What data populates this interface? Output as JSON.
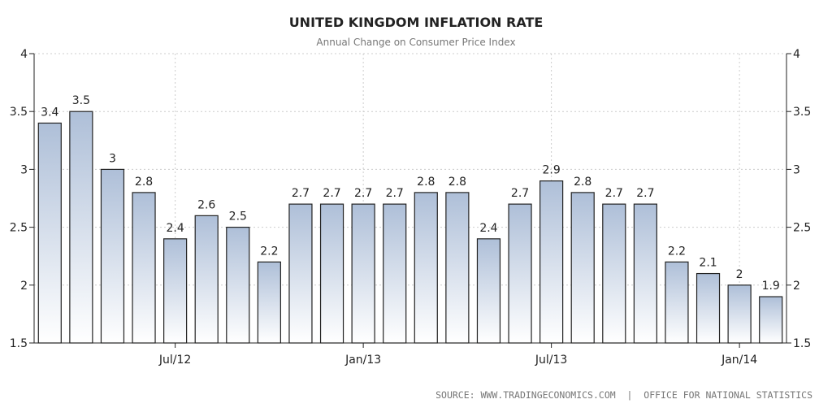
{
  "chart_data": {
    "type": "bar",
    "title": "UNITED KINGDOM INFLATION RATE",
    "subtitle": "Annual Change on Consumer Price Index",
    "values": [
      3.4,
      3.5,
      3,
      2.8,
      2.4,
      2.6,
      2.5,
      2.2,
      2.7,
      2.7,
      2.7,
      2.7,
      2.8,
      2.8,
      2.4,
      2.7,
      2.9,
      2.8,
      2.7,
      2.7,
      2.2,
      2.1,
      2,
      1.9
    ],
    "value_labels": [
      "3.4",
      "3.5",
      "3",
      "2.8",
      "2.4",
      "2.6",
      "2.5",
      "2.2",
      "2.7",
      "2.7",
      "2.7",
      "2.7",
      "2.8",
      "2.8",
      "2.4",
      "2.7",
      "2.9",
      "2.8",
      "2.7",
      "2.7",
      "2.2",
      "2.1",
      "2",
      "1.9"
    ],
    "x_ticks": [
      {
        "label": "Jul/12",
        "index": 4.5
      },
      {
        "label": "Jan/13",
        "index": 10.5
      },
      {
        "label": "Jul/13",
        "index": 16.5
      },
      {
        "label": "Jan/14",
        "index": 22.5
      }
    ],
    "y_ticks": [
      "4",
      "3.5",
      "3",
      "2.5",
      "2",
      "1.5"
    ],
    "ylim": [
      1.5,
      4
    ],
    "grid": true,
    "y_axes": "left-and-right",
    "colors": {
      "bar_top": "#aebfd8",
      "bar_bottom": "#ffffff",
      "bar_stroke": "#222222",
      "grid": "#cccccc"
    },
    "source": "SOURCE: WWW.TRADINGECONOMICS.COM  |  OFFICE FOR NATIONAL STATISTICS"
  }
}
